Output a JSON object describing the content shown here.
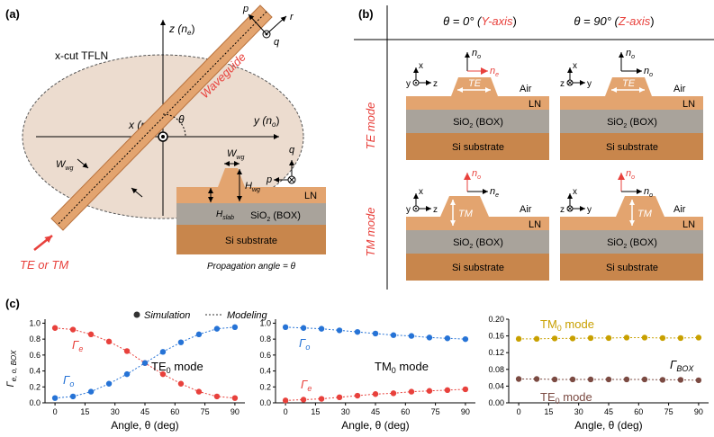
{
  "panel_a": {
    "label": "(a)",
    "material": "x-cut TFLN",
    "z_axis": "z (n",
    "z_sub": "e",
    "y_axis": "y (n",
    "y_sub": "o",
    "x_axis": "x (n",
    "x_sub": "o",
    "close": ")",
    "theta": "θ",
    "waveguide": "Waveguide",
    "p": "p",
    "r": "r",
    "q": "q",
    "w_wg": "W",
    "w_sub": "wg",
    "h_wg": "H",
    "h_sub": "wg",
    "h_slab": "H",
    "slab_sub": "slab",
    "input": "TE or TM",
    "ln": "LN",
    "sio2": "SiO",
    "sio2_sub": "2",
    "box": " (BOX)",
    "si": "Si substrate",
    "propagation": "Propagation angle = θ"
  },
  "panel_b": {
    "label": "(b)",
    "col1": "θ = 0° (",
    "col1_axis": "Y-axis",
    "col2": "θ = 90° (",
    "col2_axis": "Z-axis",
    "close": ")",
    "row1": "TE mode",
    "row2": "TM mode",
    "te": "TE",
    "tm": "TM",
    "air": "Air",
    "ln": "LN",
    "sio2": "SiO",
    "sio2_sub": "2",
    "box": " (BOX)",
    "si": "Si substrate",
    "n": "n",
    "o": "o",
    "e": "e",
    "x": "x",
    "y": "y",
    "z": "z"
  },
  "panel_c": {
    "label": "(c)",
    "legend_sim": "Simulation",
    "legend_model": "Modeling",
    "ylabel": "Γ",
    "ylabel_sub": "e, o, BOX",
    "xlabel": "Angle, θ (deg)",
    "te0_mode": "TE",
    "tm0_mode": "TM",
    "zero_sub": "0",
    "mode_word": " mode",
    "gamma": "Γ",
    "e": "e",
    "o": "o",
    "box_sub": "BOX"
  },
  "chart_data": [
    {
      "type": "scatter",
      "title": "TE0 mode",
      "xlabel": "Angle, θ (deg)",
      "ylabel": "Γe, o, BOX",
      "xlim": [
        -5,
        95
      ],
      "ylim": [
        0,
        1.05
      ],
      "xticks": [
        "0",
        "15",
        "30",
        "45",
        "60",
        "75",
        "90"
      ],
      "yticks": [
        "0.0",
        "0.2",
        "0.4",
        "0.6",
        "0.8",
        "1.0"
      ],
      "x": [
        0,
        9,
        18,
        27,
        36,
        45,
        54,
        63,
        72,
        81,
        90
      ],
      "series": [
        {
          "name": "Γe",
          "color": "#e8413c",
          "values": [
            0.94,
            0.92,
            0.86,
            0.77,
            0.65,
            0.5,
            0.36,
            0.24,
            0.14,
            0.08,
            0.06
          ]
        },
        {
          "name": "Γo",
          "color": "#2673d6",
          "values": [
            0.06,
            0.08,
            0.14,
            0.24,
            0.36,
            0.5,
            0.64,
            0.76,
            0.86,
            0.93,
            0.95
          ]
        }
      ]
    },
    {
      "type": "scatter",
      "title": "TM0 mode",
      "xlabel": "Angle, θ (deg)",
      "xlim": [
        -5,
        95
      ],
      "ylim": [
        0,
        1.05
      ],
      "xticks": [
        "0",
        "15",
        "30",
        "45",
        "60",
        "75",
        "90"
      ],
      "yticks": [
        "0.0",
        "0.2",
        "0.4",
        "0.6",
        "0.8",
        "1.0"
      ],
      "x": [
        0,
        9,
        18,
        27,
        36,
        45,
        54,
        63,
        72,
        81,
        90
      ],
      "series": [
        {
          "name": "Γo",
          "color": "#2673d6",
          "values": [
            0.95,
            0.94,
            0.93,
            0.91,
            0.89,
            0.87,
            0.85,
            0.84,
            0.82,
            0.81,
            0.8
          ]
        },
        {
          "name": "Γe",
          "color": "#e8413c",
          "values": [
            0.03,
            0.04,
            0.05,
            0.07,
            0.09,
            0.11,
            0.12,
            0.14,
            0.15,
            0.16,
            0.17
          ]
        }
      ]
    },
    {
      "type": "scatter",
      "title": "ΓBOX",
      "xlabel": "Angle, θ (deg)",
      "xlim": [
        -5,
        95
      ],
      "ylim": [
        0,
        0.2
      ],
      "xticks": [
        "0",
        "15",
        "30",
        "45",
        "60",
        "75",
        "90"
      ],
      "yticks": [
        "0.00",
        "0.04",
        "0.08",
        "0.12",
        "0.16",
        "0.20"
      ],
      "x": [
        0,
        9,
        18,
        27,
        36,
        45,
        54,
        63,
        72,
        81,
        90
      ],
      "series": [
        {
          "name": "TM0 mode",
          "color": "#c8a000",
          "values": [
            0.153,
            0.153,
            0.154,
            0.154,
            0.155,
            0.155,
            0.156,
            0.156,
            0.155,
            0.155,
            0.156
          ]
        },
        {
          "name": "TE0 mode",
          "color": "#7b4a42",
          "values": [
            0.057,
            0.057,
            0.056,
            0.056,
            0.056,
            0.056,
            0.056,
            0.056,
            0.055,
            0.055,
            0.054
          ]
        }
      ]
    }
  ]
}
